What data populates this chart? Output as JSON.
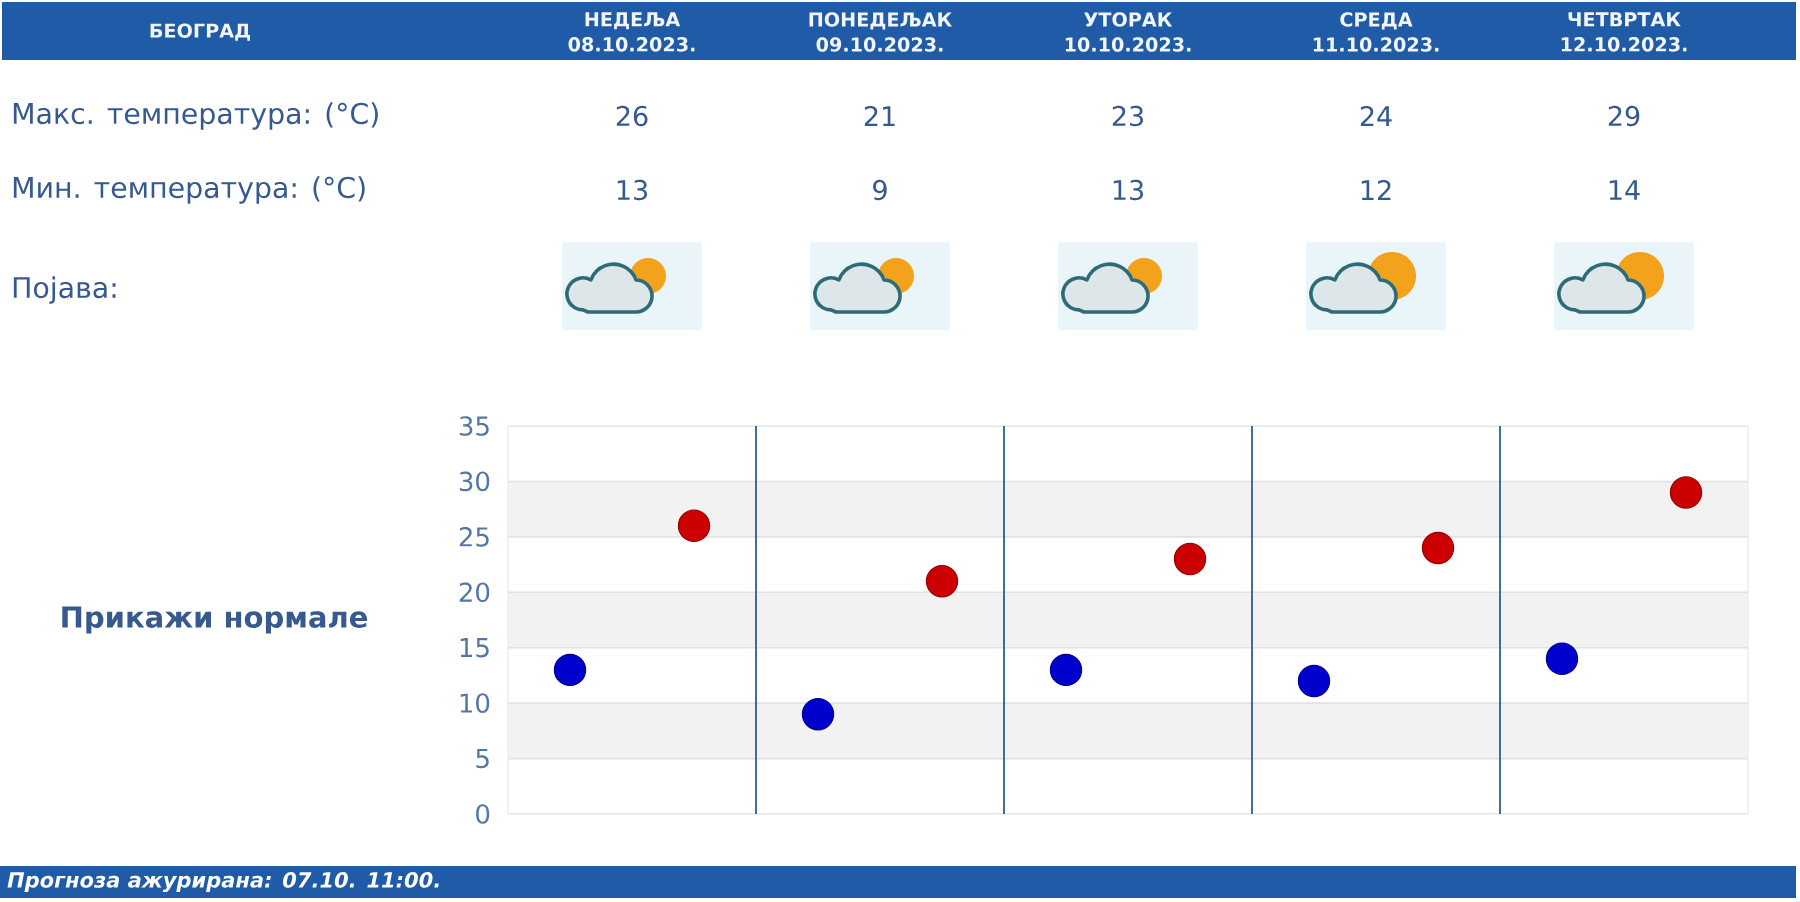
{
  "chart_data": {
    "type": "scatter",
    "title": "БЕОГРАД",
    "categories": [
      null,
      null,
      null,
      null,
      null
    ],
    "series": [
      {
        "color": "#cc0000",
        "values": [
          26,
          21,
          23,
          24,
          29
        ]
      },
      {
        "color": "#0000cc",
        "values": [
          13,
          9,
          13,
          12,
          14
        ]
      }
    ],
    "ylim": [
      0,
      35
    ],
    "yticks": [
      0,
      5,
      10,
      15,
      20,
      25,
      30,
      35
    ],
    "grid": true,
    "marker": "circle",
    "data_labels": true,
    "bands": [
      {
        "axis": "y",
        "from": 5,
        "to": 10,
        "color": "#f2f2f2"
      },
      {
        "axis": "y",
        "from": 15,
        "to": 20,
        "color": "#f2f2f2"
      },
      {
        "axis": "y",
        "from": 25,
        "to": 30,
        "color": "#f2f2f2"
      }
    ],
    "annotations": [
      "НЕДЕЉА 08.10.2023.",
      "ПОНЕДЕЉАК 09.10.2023.",
      "УТОРАК 10.10.2023.",
      "СРЕДА 11.10.2023.",
      "ЧЕТВРТАК 12.10.2023.",
      "Макс. температура: (°C)",
      "Мин. температура: (°C)",
      "Појава:",
      "Прикажи нормале",
      "Прогноза ажурирана:  07.10. 11:00."
    ]
  }
}
